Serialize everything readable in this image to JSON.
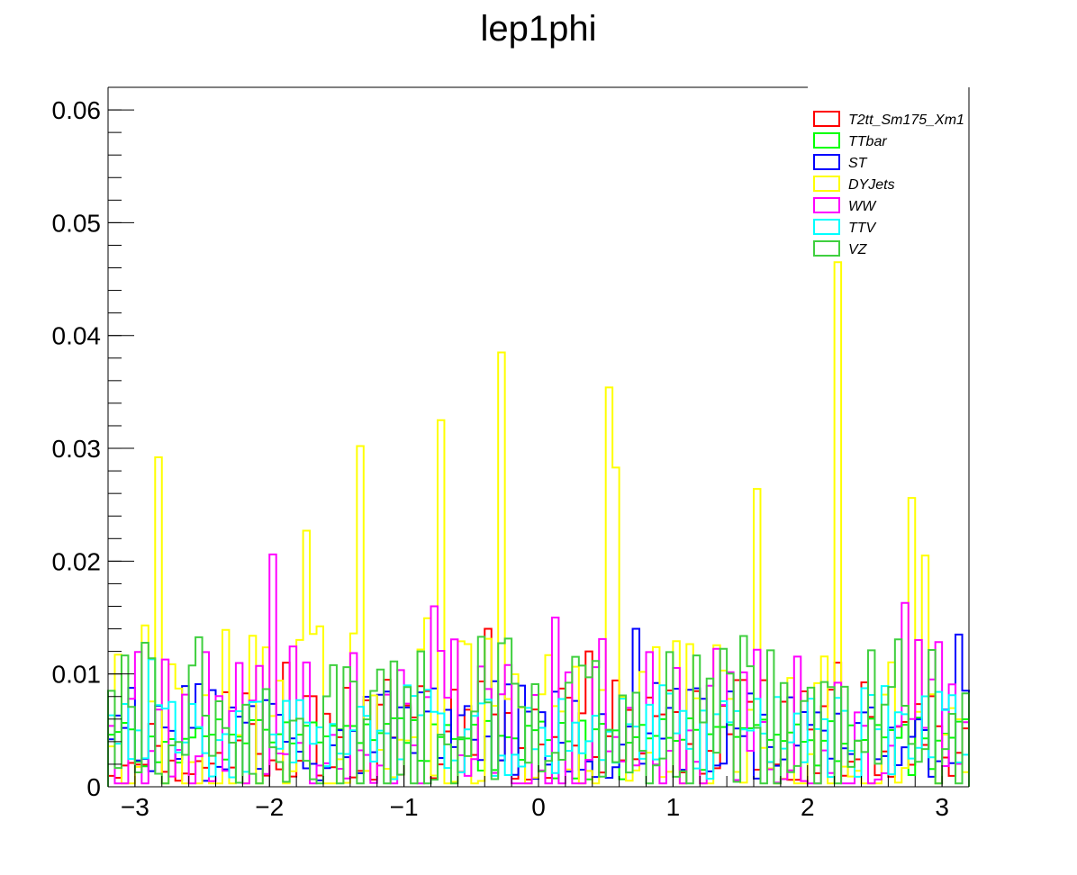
{
  "chart_data": {
    "type": "histogram-step",
    "title": "lep1phi",
    "xlabel": "",
    "ylabel": "",
    "xlim": [
      -3.2,
      3.2
    ],
    "ylim": [
      0,
      0.062
    ],
    "x_ticks": [
      -3,
      -2,
      -1,
      0,
      1,
      2,
      3
    ],
    "x_tick_labels": [
      "−3",
      "−2",
      "−1",
      "0",
      "1",
      "2",
      "3"
    ],
    "y_ticks": [
      0,
      0.01,
      0.02,
      0.03,
      0.04,
      0.05,
      0.06
    ],
    "y_tick_labels": [
      "0",
      "0.01",
      "0.02",
      "0.03",
      "0.04",
      "0.05",
      "0.06"
    ],
    "grid": false,
    "legend_position": "top-right",
    "bins": 128,
    "series": [
      {
        "name": "T2tt_Sm175_Xm1",
        "color": "#ff0000",
        "approx_level": 0.005,
        "amplitude": 0.0045,
        "peaks": [
          [
            -1.9,
            0.011
          ],
          [
            -0.4,
            0.014
          ],
          [
            0.35,
            0.012
          ],
          [
            2.2,
            0.011
          ]
        ]
      },
      {
        "name": "TTbar",
        "color": "#00ff00",
        "approx_level": 0.005,
        "amplitude": 0.0012,
        "peaks": []
      },
      {
        "name": "ST",
        "color": "#0000ff",
        "approx_level": 0.005,
        "amplitude": 0.0045,
        "peaks": [
          [
            0.7,
            0.014
          ],
          [
            3.1,
            0.0135
          ]
        ]
      },
      {
        "name": "DYJets",
        "color": "#ffff00",
        "approx_level": 0.004,
        "amplitude": 0.011,
        "peaks": [
          [
            -2.85,
            0.0292
          ],
          [
            -1.75,
            0.0227
          ],
          [
            -1.35,
            0.0302
          ],
          [
            -0.75,
            0.0325
          ],
          [
            -0.3,
            0.0385
          ],
          [
            0.5,
            0.0354
          ],
          [
            0.55,
            0.0283
          ],
          [
            1.6,
            0.0264
          ],
          [
            2.2,
            0.0465
          ],
          [
            2.75,
            0.0256
          ],
          [
            2.9,
            0.0205
          ]
        ]
      },
      {
        "name": "WW",
        "color": "#ff00ff",
        "approx_level": 0.0045,
        "amplitude": 0.009,
        "peaks": [
          [
            -2.0,
            0.0206
          ],
          [
            2.7,
            0.0163
          ],
          [
            -0.8,
            0.016
          ],
          [
            0.1,
            0.015
          ]
        ]
      },
      {
        "name": "TTV",
        "color": "#00ffff",
        "approx_level": 0.0055,
        "amplitude": 0.0035,
        "peaks": [
          [
            -2.9,
            0.0113
          ]
        ]
      },
      {
        "name": "VZ",
        "color": "#3fcf3f",
        "approx_level": 0.0055,
        "amplitude": 0.008,
        "peaks": [
          [
            -0.9,
            0.012
          ]
        ]
      }
    ]
  }
}
